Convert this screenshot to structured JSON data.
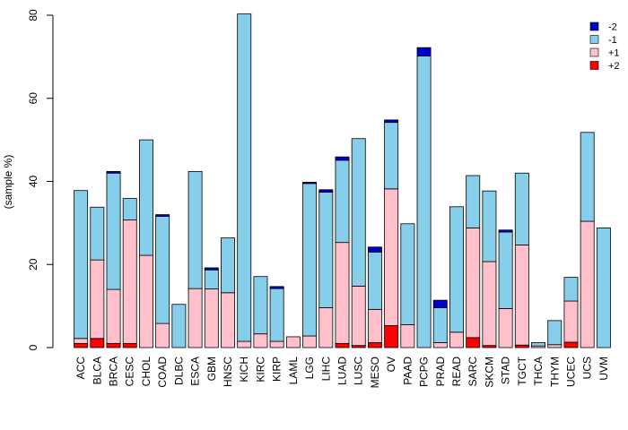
{
  "chart_data": {
    "type": "bar",
    "stacked": true,
    "title": "",
    "xlabel": "",
    "ylabel": "(sample %)",
    "ylim": [
      0,
      80
    ],
    "yticks": [
      0,
      20,
      40,
      60,
      80
    ],
    "grid": false,
    "legend_position": "top-right",
    "categories": [
      "ACC",
      "BLCA",
      "BRCA",
      "CESC",
      "CHOL",
      "COAD",
      "DLBC",
      "ESCA",
      "GBM",
      "HNSC",
      "KICH",
      "KIRC",
      "KIRP",
      "LAML",
      "LGG",
      "LIHC",
      "LUAD",
      "LUSC",
      "MESO",
      "OV",
      "PAAD",
      "PCPG",
      "PRAD",
      "READ",
      "SARC",
      "SKCM",
      "STAD",
      "TGCT",
      "THCA",
      "THYM",
      "UCEC",
      "UCS",
      "UVM"
    ],
    "series": [
      {
        "name": "+2",
        "color": "#ff0000",
        "values": [
          1.0,
          2.2,
          1.0,
          1.0,
          0.0,
          0.0,
          0.0,
          0.0,
          0.0,
          0.0,
          0.0,
          0.0,
          0.0,
          0.0,
          0.0,
          0.0,
          1.0,
          0.5,
          1.2,
          5.3,
          0.0,
          0.0,
          0.0,
          0.0,
          2.4,
          0.5,
          0.0,
          0.6,
          0.0,
          0.0,
          1.3,
          0.0,
          0.0
        ]
      },
      {
        "name": "+1",
        "color": "#ffc0cb",
        "values": [
          1.2,
          18.9,
          13.0,
          29.7,
          22.2,
          5.8,
          0.0,
          14.2,
          14.1,
          13.2,
          1.5,
          3.3,
          1.5,
          2.6,
          2.8,
          9.6,
          24.3,
          14.3,
          8.0,
          32.9,
          5.5,
          0.0,
          1.2,
          3.7,
          26.4,
          20.2,
          9.4,
          24.1,
          0.4,
          0.7,
          9.9,
          30.4,
          0.0
        ]
      },
      {
        "name": "-1",
        "color": "#87ceeb",
        "values": [
          35.6,
          12.7,
          28.0,
          5.2,
          27.8,
          25.8,
          10.4,
          28.2,
          4.6,
          13.2,
          78.8,
          13.8,
          12.7,
          0.0,
          36.7,
          27.8,
          19.8,
          35.5,
          13.8,
          16.0,
          24.3,
          70.2,
          8.4,
          30.2,
          12.6,
          17.0,
          18.4,
          17.3,
          0.8,
          5.8,
          5.7,
          21.4,
          28.8
        ]
      },
      {
        "name": "-2",
        "color": "#0000cd",
        "values": [
          0.0,
          0.0,
          0.4,
          0.0,
          0.0,
          0.4,
          0.0,
          0.0,
          0.5,
          0.0,
          0.0,
          0.0,
          0.5,
          0.0,
          0.3,
          0.6,
          0.8,
          0.0,
          1.2,
          0.6,
          0.0,
          2.0,
          1.8,
          0.0,
          0.0,
          0.0,
          0.5,
          0.0,
          0.0,
          0.0,
          0.0,
          0.0,
          0.0
        ]
      }
    ],
    "legend_order": [
      "-2",
      "-1",
      "+1",
      "+2"
    ]
  }
}
